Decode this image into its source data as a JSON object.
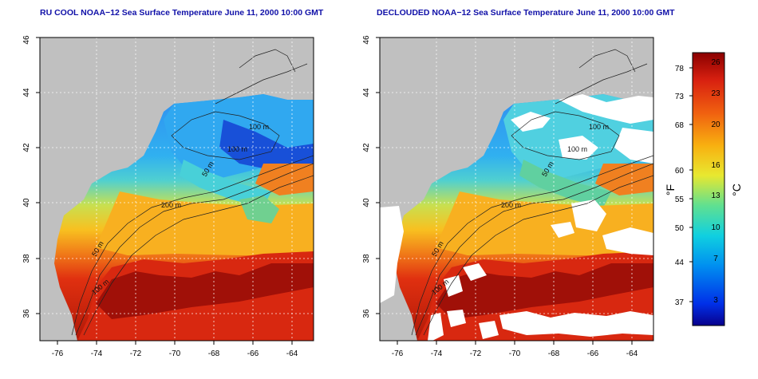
{
  "maps": [
    {
      "title": "RU COOL NOAA−12 Sea Surface Temperature June 11, 2000 10:00 GMT",
      "contour_labels": [
        "100 m",
        "100 m",
        "50 m",
        "200 m",
        "50 m",
        "100 m"
      ]
    },
    {
      "title": "DECLOUDED NOAA−12 Sea Surface Temperature June 11, 2000 10:00 GMT",
      "contour_labels": [
        "100 m",
        "100 m",
        "50 m",
        "200 m",
        "50 m",
        "100 m"
      ]
    }
  ],
  "axes": {
    "x_ticks": [
      "-76",
      "-74",
      "-72",
      "-70",
      "-68",
      "-66",
      "-64"
    ],
    "y_ticks": [
      "36",
      "38",
      "40",
      "42",
      "44",
      "46"
    ]
  },
  "colorbar": {
    "unit_f": "°F",
    "unit_c": "°C",
    "f_ticks": [
      "78",
      "73",
      "68",
      "60",
      "55",
      "50",
      "44",
      "37"
    ],
    "c_ticks": [
      "26",
      "23",
      "20",
      "16",
      "13",
      "10",
      "7",
      "3"
    ],
    "colors": {
      "land": "#c0c0c0",
      "cloud": "#ffffff",
      "warm": "#c0200c",
      "cold": "#1020c8",
      "contour": "#202020"
    }
  }
}
